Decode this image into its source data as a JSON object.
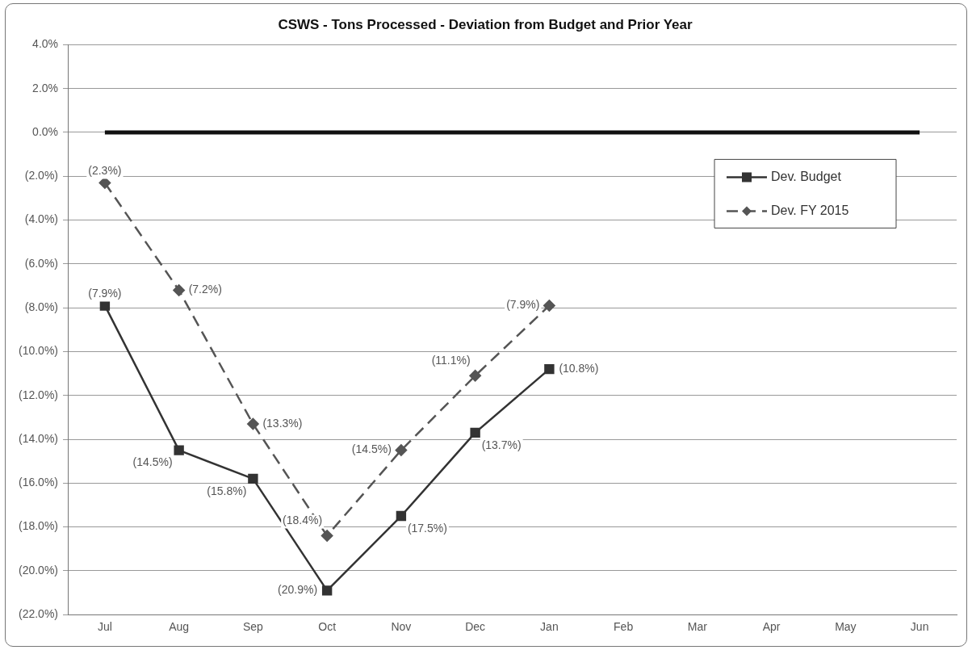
{
  "chart_data": {
    "type": "line",
    "title": "CSWS - Tons Processed - Deviation from Budget and Prior Year",
    "categories": [
      "Jul",
      "Aug",
      "Sep",
      "Oct",
      "Nov",
      "Dec",
      "Jan",
      "Feb",
      "Mar",
      "Apr",
      "May",
      "Jun"
    ],
    "series": [
      {
        "name": "Dev. Budget",
        "color": "#333333",
        "marker": "square",
        "line_style": "solid",
        "values": [
          -7.9,
          -14.5,
          -15.8,
          -20.9,
          -17.5,
          -13.7,
          -10.8,
          null,
          null,
          null,
          null,
          null
        ],
        "value_labels": [
          "(7.9%)",
          "(14.5%)",
          "(15.8%)",
          "(20.9%)",
          "(17.5%)",
          "(13.7%)",
          "(10.8%)",
          null,
          null,
          null,
          null,
          null
        ]
      },
      {
        "name": "Dev. FY 2015",
        "color": "#555555",
        "marker": "diamond",
        "line_style": "dashed",
        "values": [
          -2.3,
          -7.2,
          -13.3,
          -18.4,
          -14.5,
          -11.1,
          -7.9,
          null,
          null,
          null,
          null,
          null
        ],
        "value_labels": [
          "(2.3%)",
          "(7.2%)",
          "(13.3%)",
          "(18.4%)",
          "(14.5%)",
          "(11.1%)",
          "(7.9%)",
          null,
          null,
          null,
          null,
          null
        ]
      }
    ],
    "ylim": [
      -22,
      4
    ],
    "yticks": [
      {
        "value": 4,
        "label": "4.0%"
      },
      {
        "value": 2,
        "label": "2.0%"
      },
      {
        "value": 0,
        "label": "0.0%"
      },
      {
        "value": -2,
        "label": "(2.0%)"
      },
      {
        "value": -4,
        "label": "(4.0%)"
      },
      {
        "value": -6,
        "label": "(6.0%)"
      },
      {
        "value": -8,
        "label": "(8.0%)"
      },
      {
        "value": -10,
        "label": "(10.0%)"
      },
      {
        "value": -12,
        "label": "(12.0%)"
      },
      {
        "value": -14,
        "label": "(14.0%)"
      },
      {
        "value": -16,
        "label": "(16.0%)"
      },
      {
        "value": -18,
        "label": "(18.0%)"
      },
      {
        "value": -20,
        "label": "(20.0%)"
      },
      {
        "value": -22,
        "label": "(22.0%)"
      }
    ],
    "ref_lines": [
      {
        "axis": "y",
        "value": 0,
        "color": "#111111"
      }
    ],
    "grid": "y",
    "legend": "right"
  }
}
